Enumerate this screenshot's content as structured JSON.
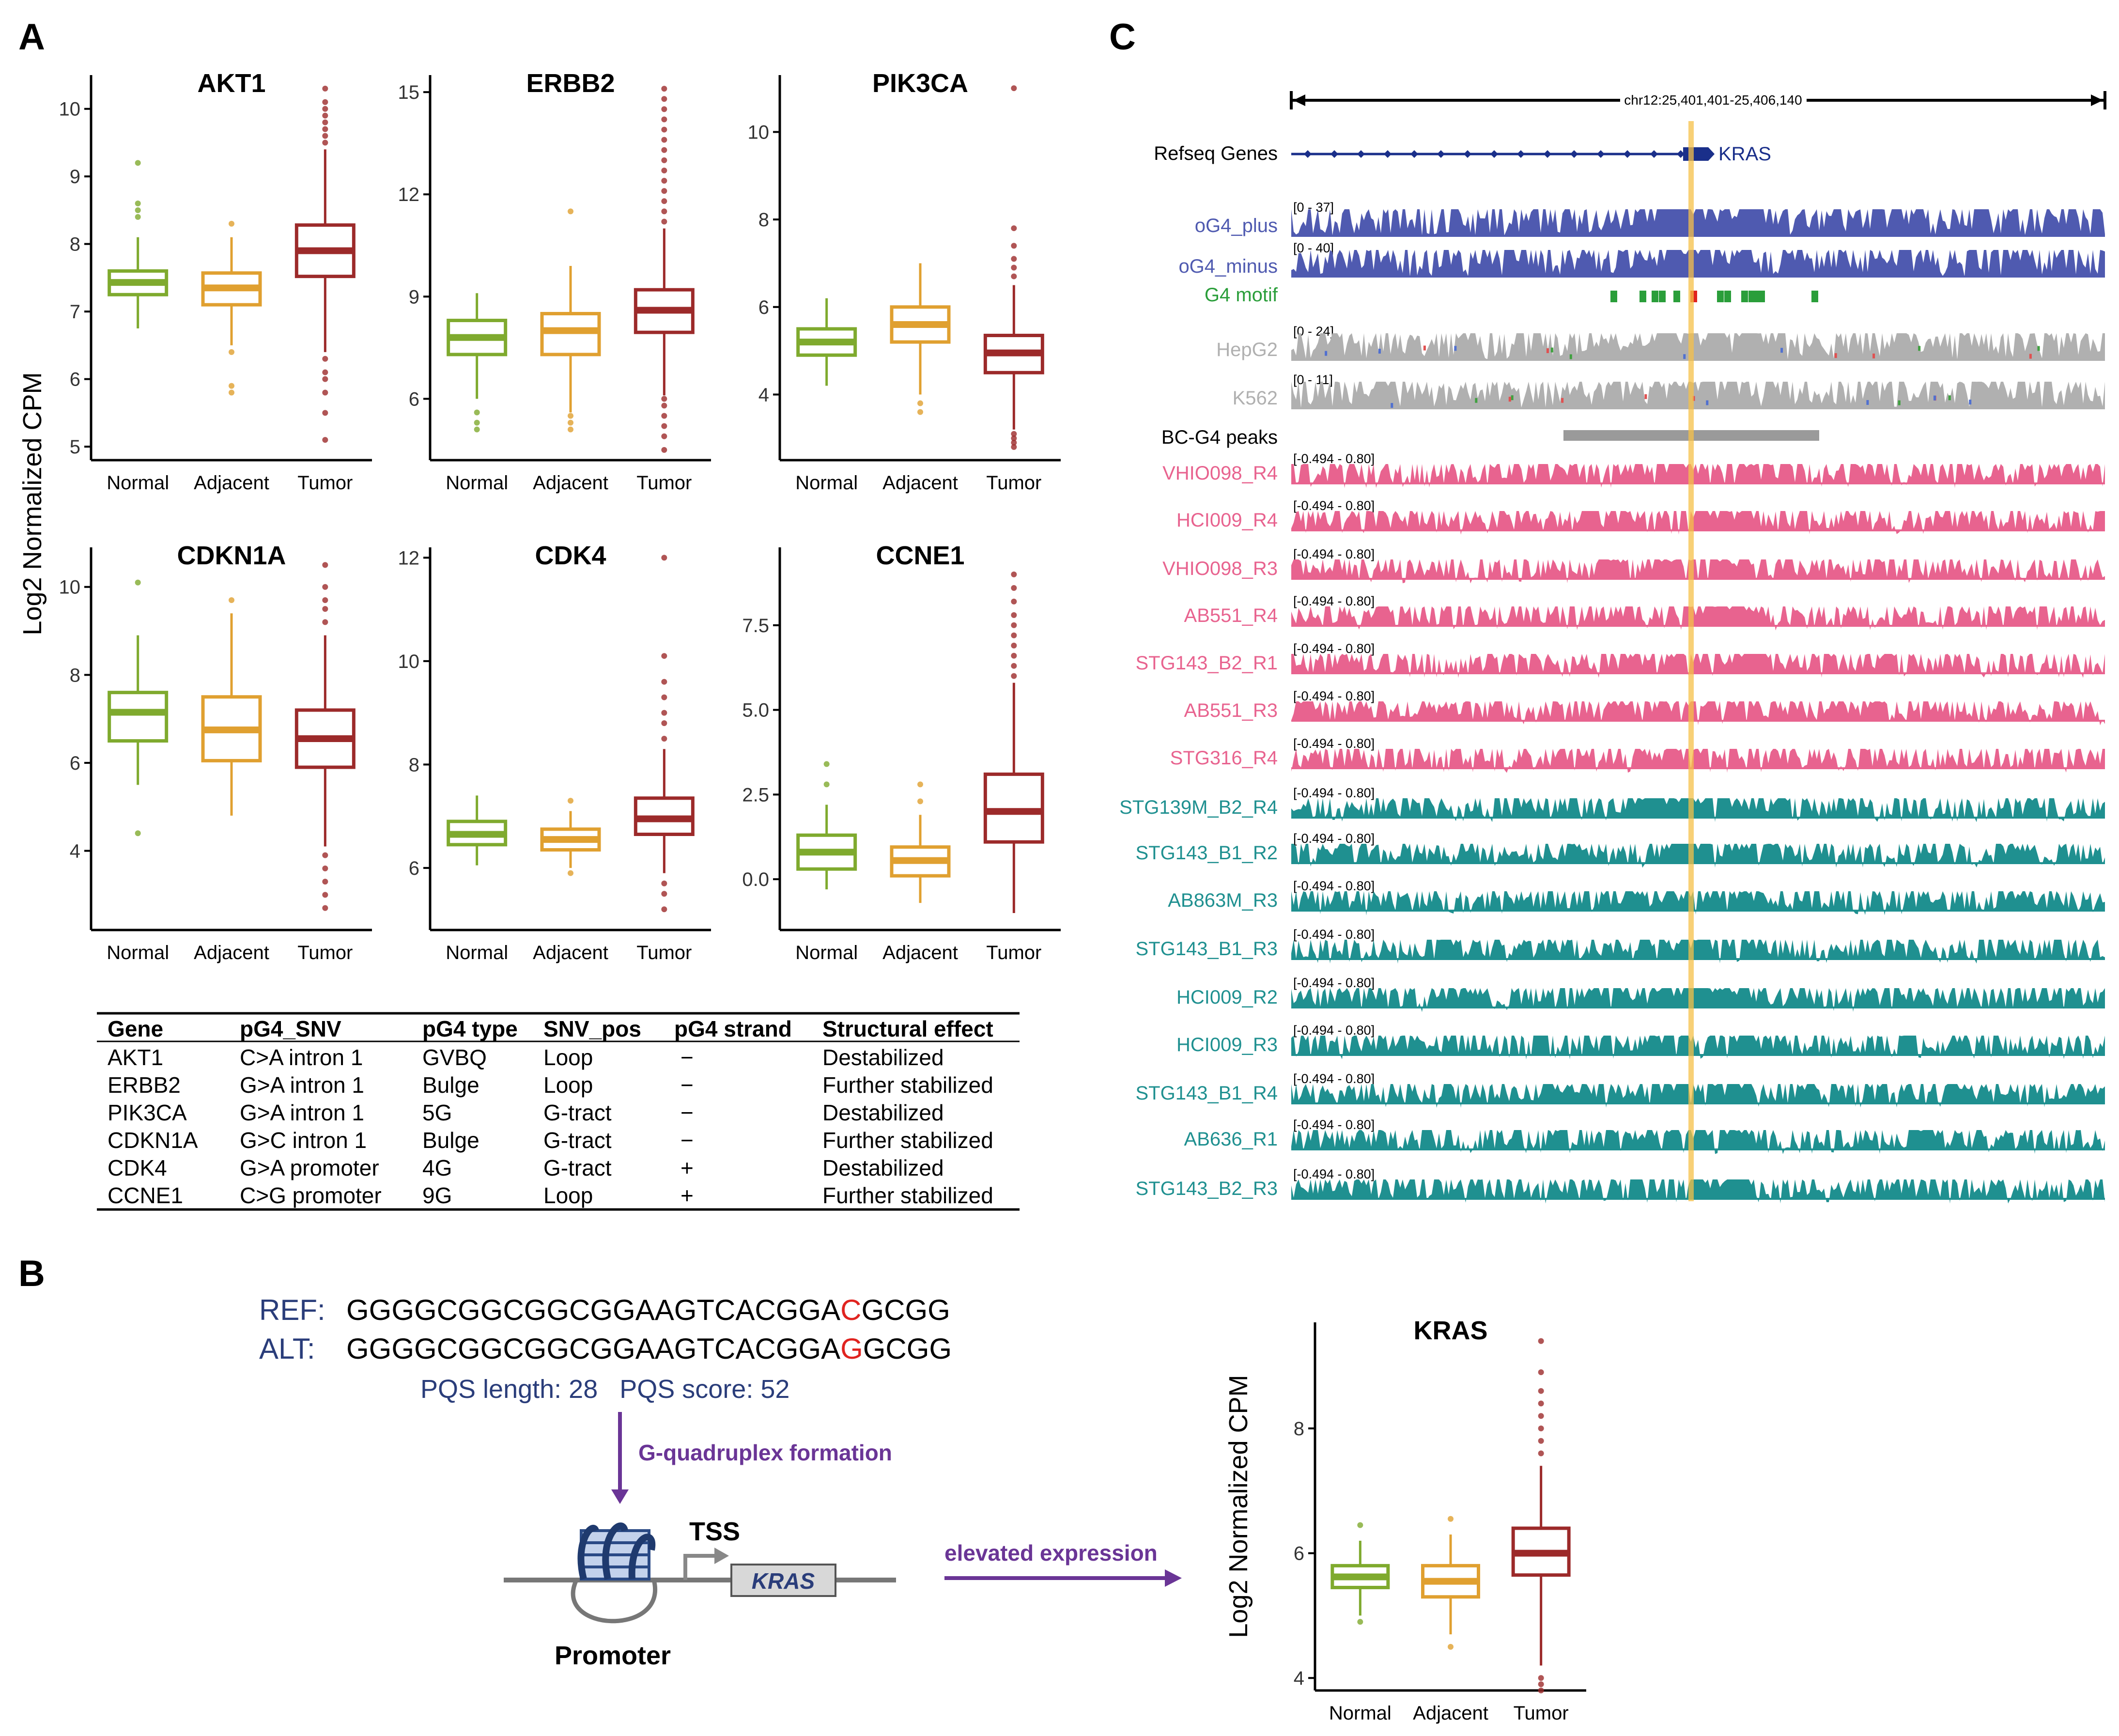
{
  "panels": {
    "a": "A",
    "b": "B",
    "c": "C"
  },
  "colors": {
    "normal": "#7faa2e",
    "adjacent": "#e0a030",
    "tumor": "#9c2a2a",
    "track_blue": "#4f5ab0",
    "track_gray": "#b0b0b0",
    "track_pink": "#e8638f",
    "track_teal": "#1f9090",
    "motif_green": "#2a9e3a",
    "highlight": "#f5c048",
    "ref_red": "#e0231f",
    "arrow_purple": "#6a3596",
    "seq_label": "#2a3d7a"
  },
  "chart_data": [
    {
      "type": "box",
      "title": "AKT1",
      "ylabel": "Log2 Normalized CPM",
      "categories": [
        "Normal",
        "Adjacent",
        "Tumor"
      ],
      "ylim": [
        4.8,
        10.5
      ],
      "yticks": [
        5,
        6,
        7,
        8,
        9,
        10
      ],
      "boxes": [
        {
          "q1": 7.25,
          "median": 7.43,
          "q3": 7.6,
          "wlo": 6.75,
          "whi": 8.1,
          "outliers": [
            8.6,
            8.4,
            8.5,
            9.2
          ]
        },
        {
          "q1": 7.1,
          "median": 7.35,
          "q3": 7.57,
          "wlo": 6.5,
          "whi": 8.1,
          "outliers": [
            6.4,
            5.9,
            5.8,
            8.3
          ]
        },
        {
          "q1": 7.52,
          "median": 7.9,
          "q3": 8.28,
          "wlo": 6.4,
          "whi": 9.4,
          "outliers": [
            9.5,
            9.6,
            9.7,
            9.8,
            9.9,
            10.0,
            10.1,
            10.3,
            6.3,
            6.1,
            6.0,
            5.8,
            5.5,
            5.1
          ]
        }
      ]
    },
    {
      "type": "box",
      "title": "ERBB2",
      "ylabel": "",
      "categories": [
        "Normal",
        "Adjacent",
        "Tumor"
      ],
      "ylim": [
        4.2,
        15.5
      ],
      "yticks": [
        6,
        9,
        12,
        15
      ],
      "boxes": [
        {
          "q1": 7.3,
          "median": 7.8,
          "q3": 8.3,
          "wlo": 6.0,
          "whi": 9.1,
          "outliers": [
            5.6,
            5.3,
            5.1
          ]
        },
        {
          "q1": 7.3,
          "median": 8.0,
          "q3": 8.5,
          "wlo": 5.6,
          "whi": 9.9,
          "outliers": [
            5.5,
            5.3,
            5.1,
            11.5
          ]
        },
        {
          "q1": 7.95,
          "median": 8.6,
          "q3": 9.2,
          "wlo": 6.1,
          "whi": 11.0,
          "outliers": [
            11.2,
            11.5,
            11.8,
            12.1,
            12.4,
            12.7,
            13.0,
            13.3,
            13.6,
            13.9,
            14.2,
            14.5,
            14.8,
            15.1,
            6.0,
            5.8,
            5.5,
            5.2,
            4.9,
            4.5
          ]
        }
      ]
    },
    {
      "type": "box",
      "title": "PIK3CA",
      "ylabel": "",
      "categories": [
        "Normal",
        "Adjacent",
        "Tumor"
      ],
      "ylim": [
        2.5,
        11.3
      ],
      "yticks": [
        4,
        6,
        8,
        10
      ],
      "boxes": [
        {
          "q1": 4.9,
          "median": 5.2,
          "q3": 5.5,
          "wlo": 4.2,
          "whi": 6.2,
          "outliers": []
        },
        {
          "q1": 5.2,
          "median": 5.6,
          "q3": 6.0,
          "wlo": 4.0,
          "whi": 7.0,
          "outliers": [
            3.8,
            3.6
          ]
        },
        {
          "q1": 4.5,
          "median": 4.95,
          "q3": 5.35,
          "wlo": 3.2,
          "whi": 6.5,
          "outliers": [
            6.7,
            6.9,
            7.1,
            7.4,
            7.8,
            11.0,
            3.1,
            3.0,
            2.9,
            2.8
          ]
        }
      ]
    },
    {
      "type": "box",
      "title": "CDKN1A",
      "ylabel": "",
      "categories": [
        "Normal",
        "Adjacent",
        "Tumor"
      ],
      "ylim": [
        2.2,
        10.9
      ],
      "yticks": [
        4,
        6,
        8,
        10
      ],
      "boxes": [
        {
          "q1": 6.5,
          "median": 7.15,
          "q3": 7.6,
          "wlo": 5.5,
          "whi": 8.9,
          "outliers": [
            4.4,
            10.1
          ]
        },
        {
          "q1": 6.05,
          "median": 6.75,
          "q3": 7.5,
          "wlo": 4.8,
          "whi": 9.4,
          "outliers": [
            9.7
          ]
        },
        {
          "q1": 5.9,
          "median": 6.55,
          "q3": 7.2,
          "wlo": 4.1,
          "whi": 8.9,
          "outliers": [
            9.2,
            9.5,
            9.7,
            10.0,
            10.5,
            3.9,
            3.6,
            3.3,
            3.0,
            2.7
          ]
        }
      ]
    },
    {
      "type": "box",
      "title": "CDK4",
      "ylabel": "",
      "categories": [
        "Normal",
        "Adjacent",
        "Tumor"
      ],
      "ylim": [
        4.8,
        12.2
      ],
      "yticks": [
        6,
        8,
        10,
        12
      ],
      "boxes": [
        {
          "q1": 6.45,
          "median": 6.65,
          "q3": 6.9,
          "wlo": 6.05,
          "whi": 7.4,
          "outliers": []
        },
        {
          "q1": 6.35,
          "median": 6.55,
          "q3": 6.75,
          "wlo": 6.0,
          "whi": 7.1,
          "outliers": [
            7.3,
            5.9
          ]
        },
        {
          "q1": 6.65,
          "median": 6.95,
          "q3": 7.35,
          "wlo": 5.9,
          "whi": 8.3,
          "outliers": [
            8.5,
            8.8,
            9.0,
            9.3,
            9.6,
            10.1,
            12.0,
            5.7,
            5.5,
            5.2
          ]
        }
      ]
    },
    {
      "type": "box",
      "title": "CCNE1",
      "ylabel": "",
      "categories": [
        "Normal",
        "Adjacent",
        "Tumor"
      ],
      "ylim": [
        -1.5,
        9.8
      ],
      "yticks": [
        0.0,
        2.5,
        5.0,
        7.5
      ],
      "ytick_labels": [
        "0.0",
        "2.5",
        "5.0",
        "7.5"
      ],
      "boxes": [
        {
          "q1": 0.3,
          "median": 0.8,
          "q3": 1.3,
          "wlo": -0.3,
          "whi": 2.2,
          "outliers": [
            2.8,
            3.4
          ]
        },
        {
          "q1": 0.1,
          "median": 0.55,
          "q3": 0.95,
          "wlo": -0.7,
          "whi": 1.9,
          "outliers": [
            2.3,
            2.8
          ]
        },
        {
          "q1": 1.1,
          "median": 2.0,
          "q3": 3.1,
          "wlo": -1.0,
          "whi": 5.8,
          "outliers": [
            6.0,
            6.3,
            6.6,
            6.9,
            7.2,
            7.5,
            7.8,
            8.2,
            8.6,
            9.0
          ]
        }
      ]
    },
    {
      "type": "box",
      "title": "KRAS",
      "ylabel": "Log2 Normalized CPM",
      "categories": [
        "Normal",
        "Adjacent",
        "Tumor"
      ],
      "ylim": [
        3.8,
        9.7
      ],
      "yticks": [
        4,
        6,
        8
      ],
      "boxes": [
        {
          "q1": 5.45,
          "median": 5.62,
          "q3": 5.8,
          "wlo": 5.0,
          "whi": 6.2,
          "outliers": [
            4.9,
            6.45
          ]
        },
        {
          "q1": 5.3,
          "median": 5.55,
          "q3": 5.8,
          "wlo": 4.7,
          "whi": 6.3,
          "outliers": [
            4.5,
            6.55
          ]
        },
        {
          "q1": 5.65,
          "median": 6.0,
          "q3": 6.4,
          "wlo": 4.2,
          "whi": 7.4,
          "outliers": [
            7.6,
            7.8,
            8.0,
            8.2,
            8.4,
            8.6,
            8.9,
            9.4,
            4.0,
            3.9,
            3.8
          ]
        }
      ]
    }
  ],
  "table": {
    "headers": [
      "Gene",
      "pG4_SNV",
      "pG4 type",
      "SNV_pos",
      "pG4 strand",
      "Structural effect"
    ],
    "rows": [
      [
        "AKT1",
        "C>A intron 1",
        "GVBQ",
        "Loop",
        "−",
        "Destabilized"
      ],
      [
        "ERBB2",
        "G>A intron 1",
        "Bulge",
        "Loop",
        "−",
        "Further stabilized"
      ],
      [
        "PIK3CA",
        "G>A intron 1",
        "5G",
        "G-tract",
        "−",
        "Destabilized"
      ],
      [
        "CDKN1A",
        "G>C intron 1",
        "Bulge",
        "G-tract",
        "−",
        "Further stabilized"
      ],
      [
        "CDK4",
        "G>A promoter",
        "4G",
        "G-tract",
        "+",
        "Destabilized"
      ],
      [
        "CCNE1",
        "C>G promoter",
        "9G",
        "Loop",
        "+",
        "Further stabilized"
      ]
    ]
  },
  "seq": {
    "ref_label": "REF:",
    "alt_label": "ALT:",
    "ref_pre": "GGGGCGGCGGCGGAAGTCACGGA",
    "ref_mut": "C",
    "ref_post": "GCGG",
    "alt_pre": "GGGGCGGCGGCGGAAGTCACGGA",
    "alt_mut": "G",
    "alt_post": "GCGG",
    "pqs": "PQS length: 28   PQS score: 52",
    "formation": "G-quadruplex formation",
    "tss": "TSS",
    "gene": "KRAS",
    "promoter": "Promoter",
    "elevated": "elevated expression"
  },
  "browser": {
    "locus": "chr12:25,401,401-25,406,140",
    "refseq_label": "Refseq Genes",
    "gene_label": "KRAS",
    "motif_label": "G4 motif",
    "peaks_label": "BC-G4 peaks",
    "tracks": [
      {
        "name": "oG4_plus",
        "range": "[0 - 37]",
        "kind": "blue"
      },
      {
        "name": "oG4_minus",
        "range": "[0 - 40]",
        "kind": "blue"
      },
      {
        "name": "HepG2",
        "range": "[0 - 24]",
        "kind": "gray"
      },
      {
        "name": "K562",
        "range": "[0 - 11]",
        "kind": "gray"
      },
      {
        "name": "VHIO098_R4",
        "range": "[-0.494 - 0.80]",
        "kind": "pink"
      },
      {
        "name": "HCI009_R4",
        "range": "[-0.494 - 0.80]",
        "kind": "pink"
      },
      {
        "name": "VHIO098_R3",
        "range": "[-0.494 - 0.80]",
        "kind": "pink"
      },
      {
        "name": "AB551_R4",
        "range": "[-0.494 - 0.80]",
        "kind": "pink"
      },
      {
        "name": "STG143_B2_R1",
        "range": "[-0.494 - 0.80]",
        "kind": "pink"
      },
      {
        "name": "AB551_R3",
        "range": "[-0.494 - 0.80]",
        "kind": "pink"
      },
      {
        "name": "STG316_R4",
        "range": "[-0.494 - 0.80]",
        "kind": "pink"
      },
      {
        "name": "STG139M_B2_R4",
        "range": "[-0.494 - 0.80]",
        "kind": "teal"
      },
      {
        "name": "STG143_B1_R2",
        "range": "[-0.494 - 0.80]",
        "kind": "teal"
      },
      {
        "name": "AB863M_R3",
        "range": "[-0.494 - 0.80]",
        "kind": "teal"
      },
      {
        "name": "STG143_B1_R3",
        "range": "[-0.494 - 0.80]",
        "kind": "teal"
      },
      {
        "name": "HCI009_R2",
        "range": "[-0.494 - 0.80]",
        "kind": "teal"
      },
      {
        "name": "HCI009_R3",
        "range": "[-0.494 - 0.80]",
        "kind": "teal"
      },
      {
        "name": "STG143_B1_R4",
        "range": "[-0.494 - 0.80]",
        "kind": "teal"
      },
      {
        "name": "AB636_R1",
        "range": "[-0.494 - 0.80]",
        "kind": "teal"
      },
      {
        "name": "STG143_B2_R3",
        "range": "[-0.494 - 0.80]",
        "kind": "teal"
      }
    ]
  }
}
